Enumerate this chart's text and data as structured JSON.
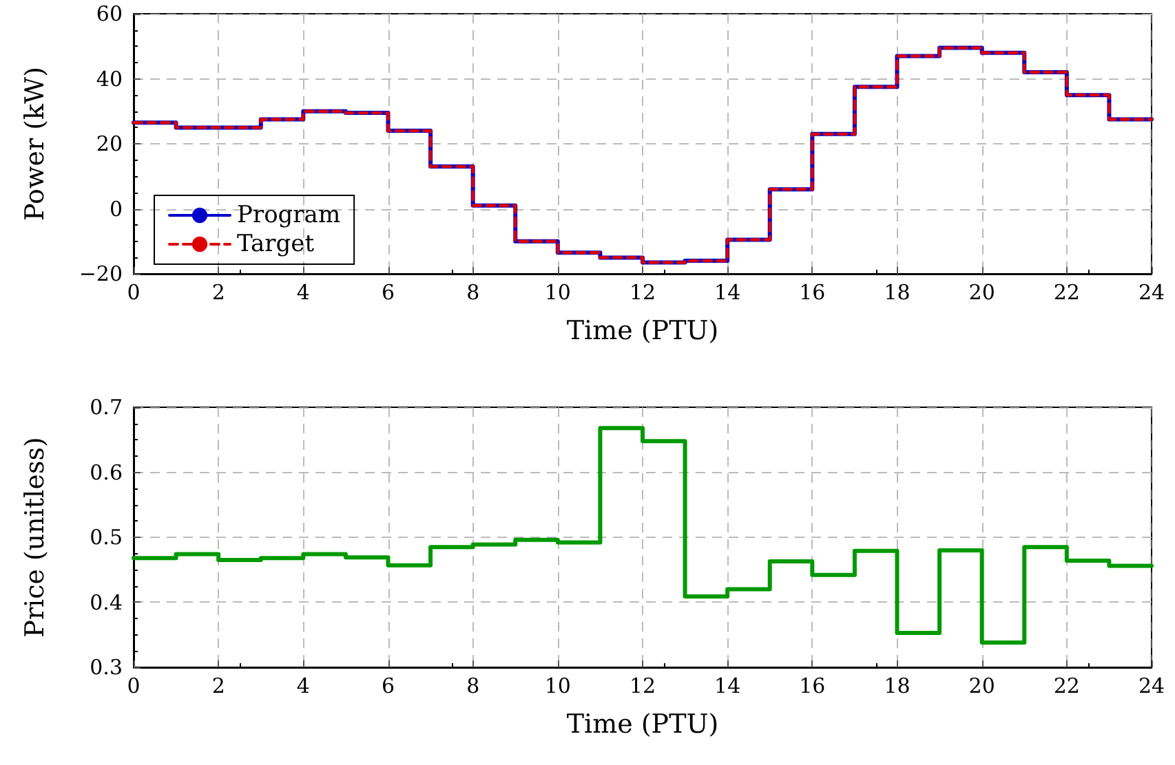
{
  "chart_data": [
    {
      "type": "step",
      "xlabel": "Time (PTU)",
      "ylabel": "Power (kW)",
      "x": [
        0,
        1,
        2,
        3,
        4,
        5,
        6,
        7,
        8,
        9,
        10,
        11,
        12,
        13,
        14,
        15,
        16,
        17,
        18,
        19,
        20,
        21,
        22,
        23,
        24
      ],
      "series": [
        {
          "name": "Program",
          "color": "#0000cc",
          "line_style": "solid",
          "values": [
            26.5,
            25,
            25,
            27.5,
            30,
            29.5,
            24,
            13,
            1,
            -10,
            -13.5,
            -15,
            -16.5,
            -16,
            -9.5,
            6,
            23,
            37.5,
            47,
            49.5,
            48,
            42,
            35,
            27.5,
            27.5
          ]
        },
        {
          "name": "Target",
          "color": "#dd0000",
          "line_style": "dashed",
          "values": [
            26.5,
            25,
            25,
            27.5,
            30,
            29.5,
            24,
            13,
            1,
            -10,
            -13.5,
            -15,
            -16.5,
            -16,
            -9.5,
            6,
            23,
            37.5,
            47,
            49.5,
            48,
            42,
            35,
            27.5,
            27.5
          ]
        }
      ],
      "xlim": [
        0,
        24
      ],
      "xticks": [
        0,
        2,
        4,
        6,
        8,
        10,
        12,
        14,
        16,
        18,
        20,
        22,
        24
      ],
      "ylim": [
        -20,
        60
      ],
      "yticks": [
        {
          "value": -20,
          "label": "−20"
        },
        0,
        20,
        40,
        60
      ],
      "grid": true,
      "legend": "bottom left",
      "marker": "none"
    },
    {
      "type": "step",
      "xlabel": "Time (PTU)",
      "ylabel": "Price (unitless)",
      "x": [
        0,
        1,
        2,
        3,
        4,
        5,
        6,
        7,
        8,
        9,
        10,
        11,
        12,
        13,
        14,
        15,
        16,
        17,
        18,
        19,
        20,
        21,
        22,
        23,
        24
      ],
      "series": [
        {
          "color": "#009900",
          "line_style": "solid",
          "values": [
            0.468,
            0.474,
            0.465,
            0.468,
            0.474,
            0.469,
            0.457,
            0.485,
            0.489,
            0.496,
            0.492,
            0.668,
            0.648,
            0.409,
            0.42,
            0.463,
            0.442,
            0.479,
            0.353,
            0.48,
            0.338,
            0.485,
            0.464,
            0.456,
            0.456
          ]
        }
      ],
      "xlim": [
        0,
        24
      ],
      "xticks": [
        0,
        2,
        4,
        6,
        8,
        10,
        12,
        14,
        16,
        18,
        20,
        22,
        24
      ],
      "ylim": [
        0.3,
        0.7
      ],
      "yticks": [
        0.3,
        0.4,
        0.5,
        0.6,
        0.7
      ],
      "grid": true,
      "legend": false,
      "marker": "none"
    }
  ]
}
